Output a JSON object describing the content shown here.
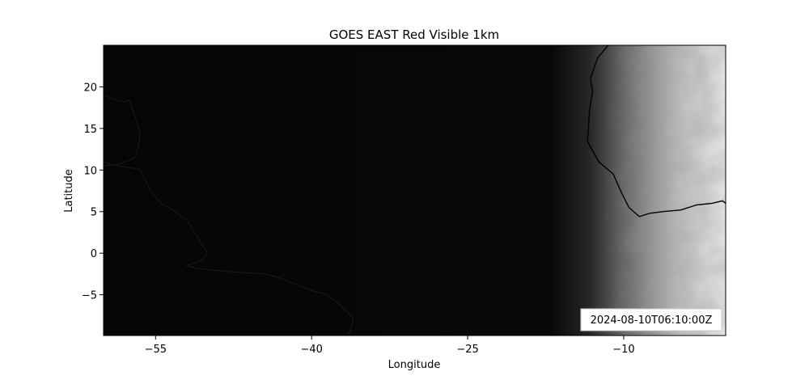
{
  "title": "GOES EAST Red Visible 1km",
  "timestamp": "2024-08-10T06:10:00Z",
  "colors": {
    "night": "#050505",
    "day": "#e6e6e6",
    "coast": "#000000",
    "frame": "#000000",
    "background": "#ffffff"
  },
  "chart_data": {
    "type": "heatmap",
    "title": "GOES EAST Red Visible 1km",
    "xlabel": "Longitude",
    "ylabel": "Latitude",
    "xlim": [
      -60,
      -0.2
    ],
    "ylim": [
      -9.9,
      25
    ],
    "x_ticks": [
      -55,
      -40,
      -25,
      -10
    ],
    "x_tick_labels": [
      "−55",
      "−40",
      "−25",
      "−10"
    ],
    "y_ticks": [
      -5,
      0,
      5,
      10,
      15,
      20
    ],
    "y_tick_labels": [
      "−5",
      "0",
      "5",
      "10",
      "15",
      "20"
    ],
    "colormap": "gray",
    "terminator_longitude": -10,
    "annotation": "2024-08-10T06:10:00Z",
    "coastlines": {
      "south_america": [
        [
          -60,
          19.0
        ],
        [
          -59,
          18.5
        ],
        [
          -58,
          18.2
        ],
        [
          -57.5,
          18.4
        ],
        [
          -57.0,
          16.5
        ],
        [
          -56.5,
          14.5
        ],
        [
          -56.6,
          13.0
        ],
        [
          -57.0,
          11.5
        ],
        [
          -58.5,
          10.7
        ],
        [
          -60,
          10.5
        ]
      ],
      "brazil": [
        [
          -60,
          11.0
        ],
        [
          -59.0,
          10.6
        ],
        [
          -57.5,
          10.3
        ],
        [
          -56.5,
          10.1
        ],
        [
          -55.5,
          7.5
        ],
        [
          -54.5,
          6.0
        ],
        [
          -53.5,
          5.3
        ],
        [
          -52.0,
          4.0
        ],
        [
          -51.0,
          2.0
        ],
        [
          -50.0,
          0.0
        ],
        [
          -50.5,
          -0.8
        ],
        [
          -52.0,
          -1.5
        ],
        [
          -51.0,
          -1.8
        ],
        [
          -49.0,
          -2.1
        ],
        [
          -47.0,
          -2.3
        ],
        [
          -44.5,
          -2.5
        ],
        [
          -43.0,
          -3.0
        ],
        [
          -42.0,
          -3.5
        ],
        [
          -40.0,
          -4.5
        ],
        [
          -38.5,
          -5.0
        ],
        [
          -37.0,
          -6.5
        ],
        [
          -36.0,
          -7.8
        ],
        [
          -36.2,
          -9.0
        ],
        [
          -36.5,
          -9.9
        ]
      ],
      "africa": [
        [
          -11.5,
          25.0
        ],
        [
          -12.5,
          23.5
        ],
        [
          -13.2,
          21.0
        ],
        [
          -13.0,
          19.5
        ],
        [
          -13.3,
          17.0
        ],
        [
          -13.4,
          15.0
        ],
        [
          -13.5,
          13.5
        ],
        [
          -12.4,
          11.0
        ],
        [
          -11.0,
          9.5
        ],
        [
          -10.3,
          7.5
        ],
        [
          -9.5,
          5.5
        ],
        [
          -8.5,
          4.4
        ],
        [
          -7.5,
          4.8
        ],
        [
          -6.2,
          5.0
        ],
        [
          -4.5,
          5.2
        ],
        [
          -3.0,
          5.8
        ],
        [
          -1.5,
          6.0
        ],
        [
          -0.5,
          6.3
        ],
        [
          -0.2,
          6.0
        ]
      ]
    }
  }
}
